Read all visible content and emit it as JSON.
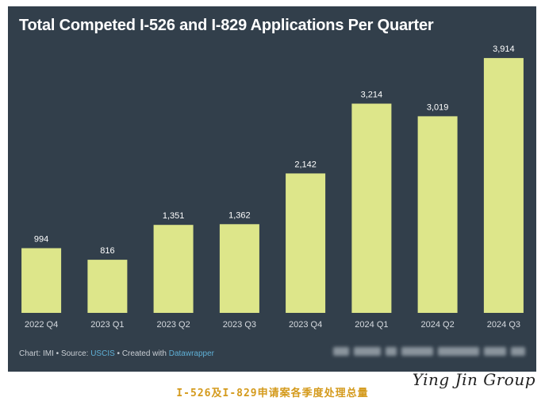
{
  "chart_data": {
    "type": "bar",
    "title": "Total Competed I-526 and I-829 Applications Per Quarter",
    "categories": [
      "2022 Q4",
      "2023 Q1",
      "2023 Q2",
      "2023 Q3",
      "2023 Q4",
      "2024 Q1",
      "2024 Q2",
      "2024 Q3"
    ],
    "values": [
      994,
      816,
      1351,
      1362,
      2142,
      3214,
      3019,
      3914
    ],
    "value_labels": [
      "994",
      "816",
      "1,351",
      "1,362",
      "2,142",
      "3,214",
      "3,019",
      "3,914"
    ],
    "xlabel": "",
    "ylabel": "",
    "ylim": [
      0,
      4000
    ],
    "grid": false
  },
  "colors": {
    "background": "#323f4b",
    "bar": "#dde68a",
    "link": "#5fb0d6",
    "caption": "#d49a1c"
  },
  "footer": {
    "prefix": "Chart: IMI • Source: ",
    "source": "USCIS",
    "middle": " • Created with ",
    "tool": "Datawrapper"
  },
  "caption": "I-526及I-829申请案各季度处理总量",
  "watermark": "Ying Jin Group"
}
